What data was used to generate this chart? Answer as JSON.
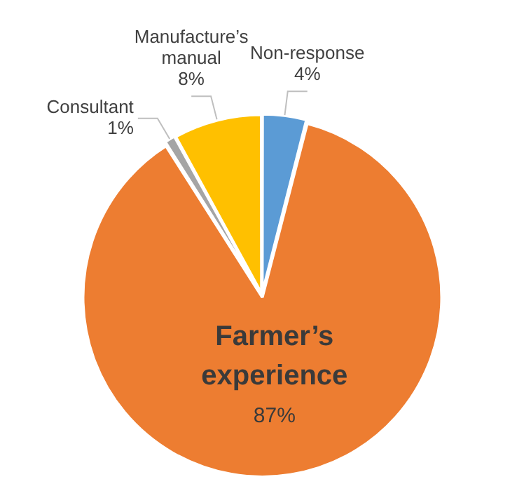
{
  "chart_data": {
    "type": "pie",
    "categories": [
      "Non-response",
      "Farmer’s experience",
      "Consultant",
      "Manufacture’s manual"
    ],
    "values": [
      4,
      87,
      1,
      8
    ],
    "colors": [
      "#5b9bd5",
      "#ed7d31",
      "#a5a5a5",
      "#ffc000"
    ],
    "value_labels": [
      "4%",
      "87%",
      "1%",
      "8%"
    ],
    "legend": false
  }
}
